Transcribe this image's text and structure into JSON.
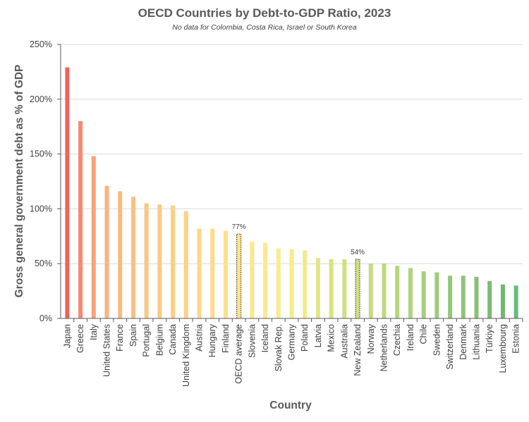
{
  "chart_data": {
    "type": "bar",
    "title": "OECD Countries by Debt-to-GDP Ratio, 2023",
    "subtitle": "No data for Colombia, Costa Rica, Israel or South Korea",
    "xlabel": "Country",
    "ylabel": "Gross general government debt as % of GDP",
    "ylim": [
      0,
      250
    ],
    "yticks": [
      0,
      50,
      100,
      150,
      200,
      250
    ],
    "ytick_labels": [
      "0%",
      "50%",
      "100%",
      "150%",
      "200%",
      "250%"
    ],
    "grid": true,
    "categories": [
      "Japan",
      "Greece",
      "Italy",
      "United States",
      "France",
      "Spain",
      "Portugal",
      "Belgium",
      "Canada",
      "United Kingdom",
      "Austria",
      "Hungary",
      "Finland",
      "OECD average",
      "Slovenia",
      "Iceland",
      "Slovak Rep.",
      "Germany",
      "Poland",
      "Latvia",
      "Mexico",
      "Australia",
      "New Zealand",
      "Norway",
      "Netherlands",
      "Czechia",
      "Ireland",
      "Chile",
      "Sweden",
      "Switzerland",
      "Denmark",
      "Lithuania",
      "Türkiye",
      "Luxembourg",
      "Estonia"
    ],
    "values": [
      229,
      180,
      148,
      121,
      116,
      111,
      105,
      104,
      103,
      98,
      82,
      82,
      80,
      77,
      70,
      69,
      64,
      63,
      62,
      55,
      54,
      54,
      54,
      50,
      50,
      48,
      46,
      43,
      42,
      39,
      39,
      38,
      34,
      31,
      30
    ],
    "colors": [
      "#f0635d",
      "#f7896e",
      "#f9a17a",
      "#fbb37d",
      "#fbb97f",
      "#fcbf80",
      "#fcc581",
      "#fdc982",
      "#fdcd83",
      "#fdd185",
      "#fdd787",
      "#fddb88",
      "#fde08a",
      "#fee28a",
      "#fde68b",
      "#fde98c",
      "#fbeb8c",
      "#f7eb8c",
      "#f2ea8b",
      "#e1e584",
      "#d9e282",
      "#d2df81",
      "#d2df81",
      "#c6db7f",
      "#bdd87e",
      "#b6d57d",
      "#b1d37c",
      "#a7ce7b",
      "#a0cb7a",
      "#95c778",
      "#8ec378",
      "#88c176",
      "#7bbb74",
      "#71b672",
      "#63be7b"
    ],
    "highlighted": [
      "OECD average",
      "New Zealand"
    ],
    "data_labels": [
      {
        "category": "OECD average",
        "text": "77%"
      },
      {
        "category": "New Zealand",
        "text": "54%"
      }
    ]
  }
}
